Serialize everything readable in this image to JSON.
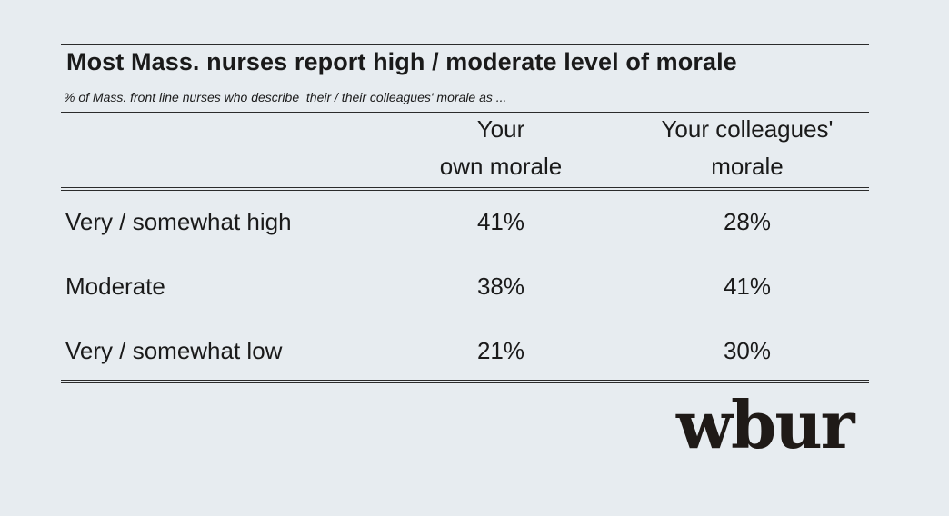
{
  "chart_data": {
    "type": "table",
    "title": "Most Mass. nurses report high / moderate level of morale",
    "subtitle": "% of Mass. front line nurses who describe  their / their colleagues' morale as ...",
    "columns": [
      {
        "line1": "Your",
        "line2": "own morale"
      },
      {
        "line1": "Your colleagues'",
        "line2": "morale"
      }
    ],
    "rows": [
      {
        "label": "Very / somewhat high",
        "values": [
          "41%",
          "28%"
        ]
      },
      {
        "label": "Moderate",
        "values": [
          "38%",
          "41%"
        ]
      },
      {
        "label": "Very / somewhat low",
        "values": [
          "21%",
          "30%"
        ]
      }
    ]
  },
  "logo": {
    "text": "wbur"
  }
}
